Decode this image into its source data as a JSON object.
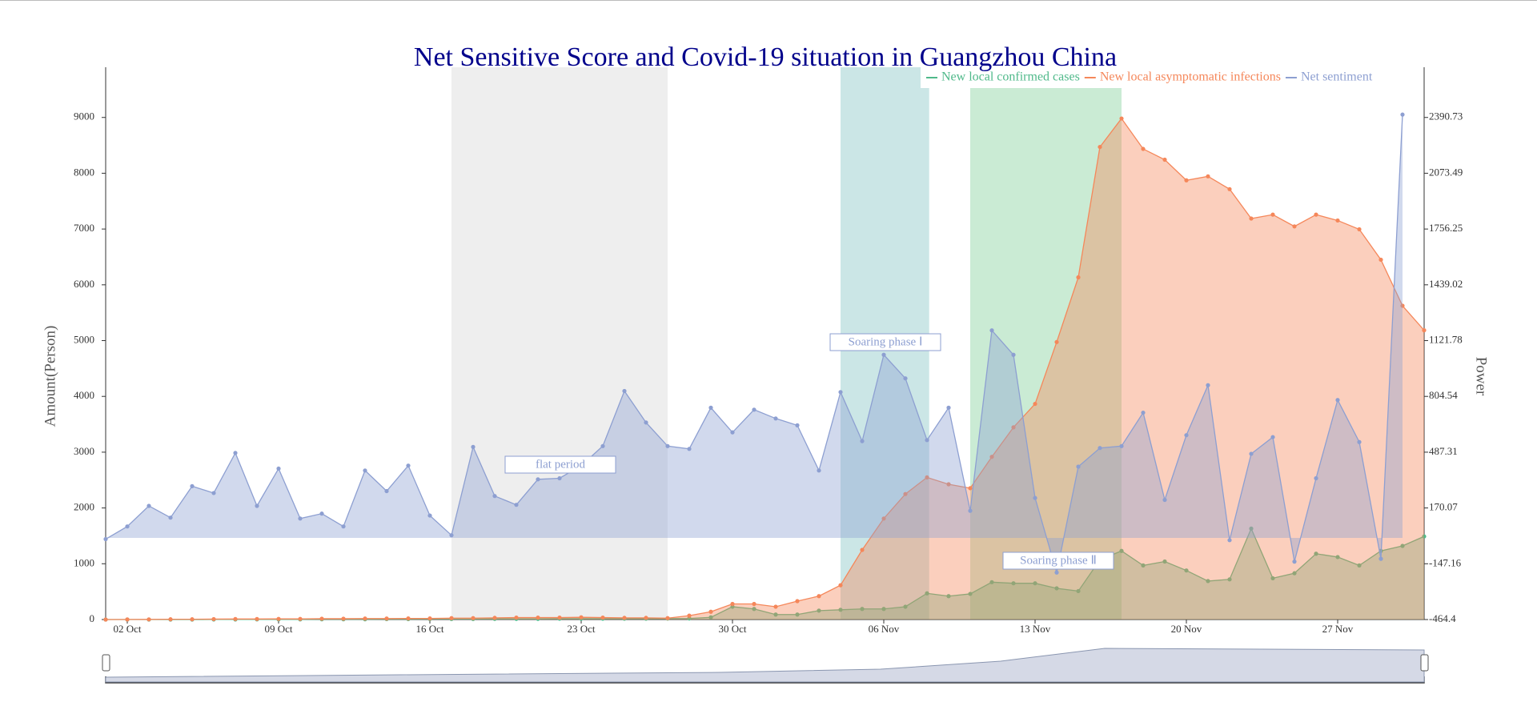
{
  "chart_data": {
    "type": "line",
    "title": "Net Sensitive Score and Covid-19 situation in Guangzhou China",
    "y_label": "Amount(Person)",
    "y2_label": "Power",
    "categories": [
      null,
      "02 Oct",
      null,
      null,
      null,
      null,
      null,
      null,
      "09 Oct",
      null,
      null,
      null,
      null,
      null,
      null,
      "16 Oct",
      null,
      null,
      null,
      null,
      null,
      null,
      "23 Oct",
      null,
      null,
      null,
      null,
      null,
      null,
      "30 Oct",
      null,
      null,
      null,
      null,
      null,
      null,
      "06 Nov",
      null,
      null,
      null,
      null,
      null,
      null,
      "13 Nov",
      null,
      null,
      null,
      null,
      null,
      null,
      "20 Nov",
      null,
      null,
      null,
      null,
      null,
      null,
      "27 Nov",
      null,
      null,
      null,
      null
    ],
    "ylim": [
      0,
      9900
    ],
    "yticks": [
      0,
      1000,
      2000,
      3000,
      4000,
      5000,
      6000,
      7000,
      8000,
      9000
    ],
    "y2lim": [
      -464.4,
      2676.25
    ],
    "y2ticks": [
      -464.4,
      -147.16,
      170.07,
      487.31,
      804.54,
      1121.78,
      1439.02,
      1756.25,
      2073.49,
      2390.73
    ],
    "series": [
      {
        "name": "New local confirmed cases",
        "color": "#4fb98a",
        "values": [
          0,
          0,
          0,
          0,
          0,
          2,
          2,
          3,
          3,
          3,
          5,
          5,
          5,
          8,
          8,
          10,
          10,
          10,
          12,
          12,
          12,
          15,
          15,
          15,
          15,
          15,
          18,
          20,
          40,
          230,
          190,
          90,
          90,
          160,
          175,
          190,
          190,
          230,
          470,
          420,
          460,
          670,
          650,
          650,
          560,
          510,
          1070,
          1230,
          970,
          1040,
          880,
          690,
          720,
          1630,
          740,
          830,
          1180,
          1120,
          970,
          1230,
          1320,
          1490
        ]
      },
      {
        "name": "New local asymptomatic infections",
        "color": "#f5875a",
        "values": [
          0,
          2,
          3,
          5,
          5,
          8,
          10,
          10,
          12,
          12,
          15,
          15,
          18,
          18,
          20,
          20,
          25,
          25,
          30,
          35,
          35,
          35,
          40,
          35,
          30,
          30,
          25,
          70,
          140,
          280,
          280,
          230,
          330,
          420,
          615,
          1248,
          1810,
          2250,
          2548,
          2425,
          2355,
          2917,
          3445,
          3866,
          4974,
          6134,
          8471,
          8981,
          8436,
          8243,
          7873,
          7944,
          7715,
          7188,
          7258,
          7047,
          7258,
          7153,
          6995,
          6450,
          5624,
          5185
        ]
      },
      {
        "name": "Net sentiment",
        "color": "#8d9fd1",
        "axis": "y2",
        "values": [
          -7,
          65,
          182,
          115,
          294,
          255,
          483,
          182,
          394,
          110,
          138,
          65,
          383,
          266,
          411,
          127,
          15,
          517,
          238,
          188,
          333,
          339,
          411,
          522,
          835,
          656,
          522,
          506,
          740,
          600,
          729,
          679,
          640,
          383,
          829,
          550,
          1041,
          907,
          556,
          740,
          154,
          1180,
          1041,
          227,
          -197,
          405,
          511,
          522,
          712,
          216,
          584,
          868,
          -13,
          478,
          573,
          -135,
          339,
          784,
          545,
          -119,
          2407,
          null
        ]
      }
    ],
    "annotations": [
      "flat period",
      "Soaring phase Ⅰ",
      "Soaring phase Ⅱ"
    ]
  }
}
